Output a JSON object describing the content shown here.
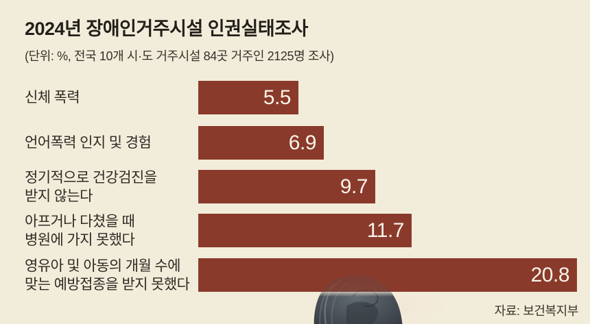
{
  "header": {
    "title": "2024년 장애인거주시설 인권실태조사",
    "subtitle": "(단위: %, 전국 10개 시·도 거주시설 84곳 거주인 2125명 조사)"
  },
  "chart_data": {
    "type": "bar",
    "orientation": "horizontal",
    "unit": "%",
    "title": "2024년 장애인거주시설 인권실태조사",
    "subtitle": "(단위: %, 전국 10개 시·도 거주시설 84곳 거주인 2125명 조사)",
    "categories": [
      "신체 폭력",
      "언어폭력 인지 및 경험",
      "정기적으로 건강검진을\n받지 않는다",
      "아프거나 다쳤을 때\n병원에 가지 못했다",
      "영유아 및 아동의 개월 수에\n맞는 예방접종을 받지 못했다"
    ],
    "values": [
      5.5,
      6.9,
      9.7,
      11.7,
      20.8
    ],
    "value_labels": [
      "5.5",
      "6.9",
      "9.7",
      "11.7",
      "20.8"
    ],
    "xlabel": "",
    "ylabel": "",
    "xlim": [
      0,
      21
    ],
    "grid": false,
    "legend": false,
    "value_labels_inside_bar": true
  },
  "footer": {
    "source": "자료: 보건복지부"
  },
  "colors": {
    "background": "#f2edda",
    "bar": "#8a3a2b",
    "value_text": "#f8f4e9",
    "title_text": "#221f1a",
    "label_text": "#2d2a24",
    "source_text": "#393329"
  },
  "decoration": {
    "photo": "back-of-person-head"
  }
}
